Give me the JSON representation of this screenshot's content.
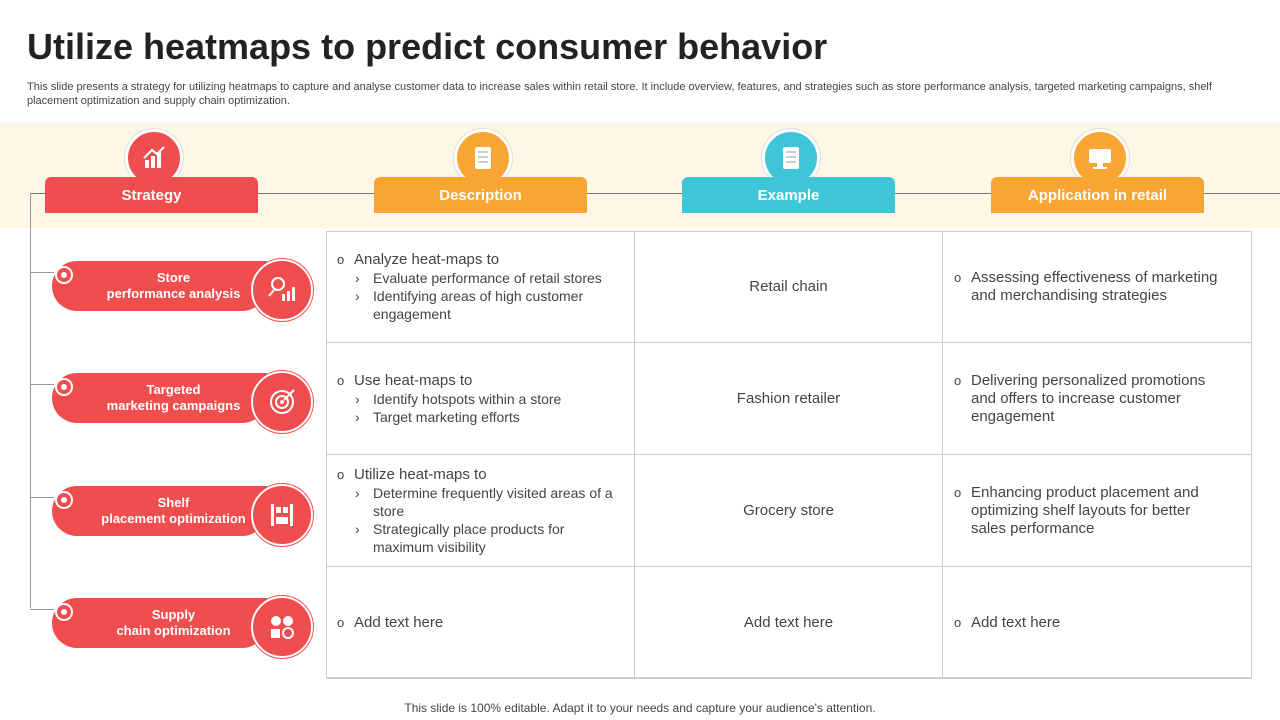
{
  "title": "Utilize heatmaps to predict consumer behavior",
  "subtitle": "This slide presents a strategy for utilizing heatmaps to capture and analyse customer data to increase sales within retail store. It include overview, features, and strategies such as store performance analysis, targeted marketing campaigns, shelf placement optimization and supply chain optimization.",
  "headers": [
    "Strategy",
    "Description",
    "Example",
    "Application in retail"
  ],
  "rows": [
    {
      "strategy": [
        "Store",
        "performance analysis"
      ],
      "description": {
        "lead": "Analyze heat-maps to",
        "items": [
          "Evaluate performance of retail stores",
          "Identifying  areas of high customer engagement"
        ]
      },
      "example": "Retail chain",
      "application": "Assessing effectiveness of marketing and merchandising strategies"
    },
    {
      "strategy": [
        "Targeted",
        "marketing campaigns"
      ],
      "description": {
        "lead": "Use heat-maps to",
        "items": [
          "Identify hotspots within a store",
          "Target marketing efforts"
        ]
      },
      "example": "Fashion retailer",
      "application": "Delivering personalized promotions and offers to increase customer engagement"
    },
    {
      "strategy": [
        "Shelf",
        "placement optimization"
      ],
      "description": {
        "lead": "Utilize heat-maps to",
        "items": [
          "Determine frequently visited areas of a store",
          "Strategically place products for maximum visibility"
        ]
      },
      "example": "Grocery store",
      "application": "Enhancing product placement and optimizing shelf layouts for better sales performance"
    },
    {
      "strategy": [
        "Supply",
        "chain optimization"
      ],
      "description": {
        "lead": "Add text here",
        "items": []
      },
      "example": "Add text here",
      "application": "Add text here"
    }
  ],
  "footer": "This slide is 100% editable. Adapt it to your needs and capture your audience's attention."
}
